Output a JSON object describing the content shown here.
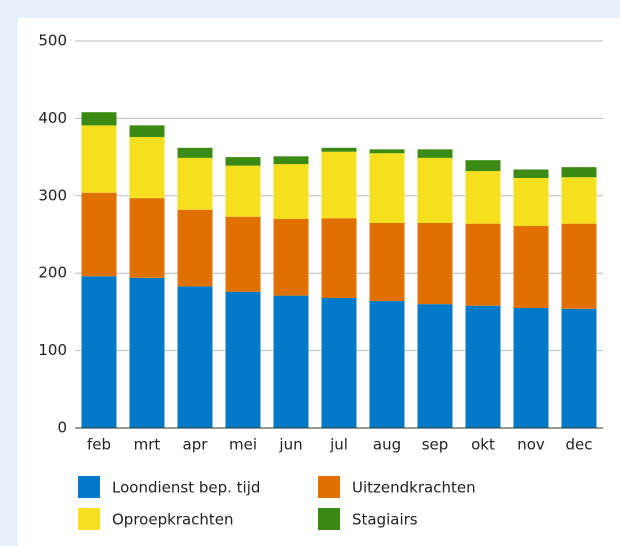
{
  "chart_data": {
    "type": "bar",
    "stacked": true,
    "categories": [
      "feb",
      "mrt",
      "apr",
      "mei",
      "jun",
      "jul",
      "aug",
      "sep",
      "okt",
      "nov",
      "dec"
    ],
    "series": [
      {
        "name": "Loondienst bep. tijd",
        "color": "#0079c8",
        "values": [
          196,
          194,
          183,
          176,
          171,
          168,
          164,
          160,
          158,
          155,
          154
        ]
      },
      {
        "name": "Uitzendkrachten",
        "color": "#e07000",
        "values": [
          108,
          103,
          99,
          97,
          99,
          103,
          101,
          105,
          106,
          106,
          110
        ]
      },
      {
        "name": "Oproepkrachten",
        "color": "#f5df1f",
        "values": [
          87,
          79,
          67,
          66,
          71,
          86,
          90,
          84,
          68,
          62,
          60
        ]
      },
      {
        "name": "Stagiairs",
        "color": "#3a8a13",
        "values": [
          17,
          15,
          13,
          11,
          10,
          5,
          5,
          11,
          14,
          11,
          13
        ]
      }
    ],
    "ylim": [
      0,
      500
    ],
    "yticks": [
      0,
      100,
      200,
      300,
      400,
      500
    ],
    "grid": true
  }
}
